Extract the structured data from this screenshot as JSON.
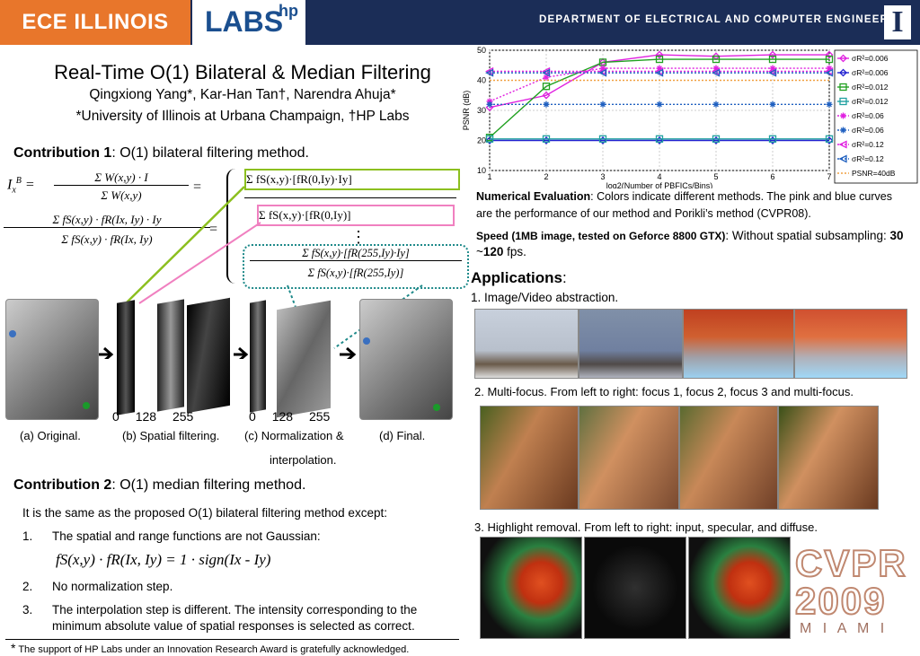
{
  "header": {
    "ece": "ECE ILLINOIS",
    "labs": "LABS",
    "hp": "hp",
    "dept": "DEPARTMENT OF ELECTRICAL AND COMPUTER ENGINEERING",
    "logo": "I"
  },
  "title": "Real-Time O(1) Bilateral & Median Filtering",
  "authors": "Qingxiong Yang*, Kar-Han Tan†, Narendra Ahuja*",
  "affiliation": "*University of Illinois at Urbana Champaign, †HP Labs",
  "contrib1": {
    "bold": "Contribution 1",
    "rest": ": O(1) bilateral filtering method."
  },
  "formula": {
    "lhs": "I",
    "num1": "Σ W(x,y) · I",
    "den1": "Σ W(x,y)",
    "num2": "Σ fS(x,y) · fR(Ix, Iy) · Iy",
    "den2": "Σ fS(x,y) · fR(Ix, Iy)",
    "box_green": "Σ fS(x,y)·[fR(0,Iy)·Iy]",
    "box_pink": "Σ fS(x,y)·[fR(0,Iy)]",
    "box_teal_num": "Σ fS(x,y)·[fR(255,Iy)·Iy]",
    "box_teal_den": "Σ fS(x,y)·[fR(255,Iy)]",
    "dots": "⋮"
  },
  "pipeline": {
    "ticks1": [
      "0",
      "128",
      "255"
    ],
    "ticks2": [
      "0",
      "128",
      "255"
    ],
    "captions": [
      "(a) Original.",
      "(b) Spatial filtering.",
      "(c) Normalization &",
      "(d) Final."
    ],
    "caption_cont": "interpolation."
  },
  "contrib2": {
    "bold": "Contribution 2",
    "rest": ": O(1) median filtering method."
  },
  "c2_intro": "It is the same as the proposed O(1) bilateral filtering method except:",
  "c2_items": [
    {
      "num": "1.",
      "text": "The spatial and range functions are not Gaussian:"
    },
    {
      "num": "2.",
      "text": "No normalization step."
    },
    {
      "num": "3.",
      "text": "The interpolation step is different. The intensity corresponding to the"
    }
  ],
  "c2_item3_cont": "minimum absolute value of spatial responses is selected as correct.",
  "median_formula": "fS(x,y) · fR(Ix, Iy)  = 1 · sign(Ix - Iy)",
  "footnote": {
    "star": "*",
    "text": "The support of HP Labs under an Innovation Research Award is gratefully acknowledged."
  },
  "numerical": {
    "bold": "Numerical Evaluation",
    "text": ":  Colors indicate different methods. The pink and blue curves are the performance of our method and Porikli’s method (CVPR08).",
    "speed_bold": "Speed (1MB image, tested on Geforce 8800 GTX)",
    "speed_rest": ": Without spatial subsampling: ",
    "speed_a": "30",
    "speed_mid": " ~",
    "speed_b": "120",
    "speed_end": " fps."
  },
  "applications": {
    "title": "Applications",
    "colon": ":",
    "items": [
      "1. Image/Video abstraction.",
      "2. Multi-focus. From left to right: focus 1, focus 2, focus 3 and multi-focus.",
      "3. Highlight removal. From left to right: input, specular, and diffuse."
    ]
  },
  "cvpr": {
    "line1": "CVPR",
    "line2": "2009",
    "line3": "M I A M I"
  },
  "chart_data": {
    "type": "line",
    "xlabel": "log2(Number of PBFICs/Bins)",
    "ylabel": "PSNR (dB)",
    "x": [
      1,
      2,
      3,
      4,
      5,
      6,
      7
    ],
    "xlim": [
      1,
      7
    ],
    "ylim": [
      10,
      50
    ],
    "xticks": [
      "1",
      "2",
      "3",
      "4",
      "5",
      "6",
      "7"
    ],
    "yticks": [
      "10",
      "20",
      "30",
      "40",
      "50"
    ],
    "grid": true,
    "legend_position": "right",
    "series": [
      {
        "name": "σR²=0.006",
        "color": "#e020e0",
        "style": "solid",
        "marker": "diamond",
        "values": [
          31,
          35,
          46,
          48.5,
          48,
          48.5,
          48.5
        ]
      },
      {
        "name": "σR²=0.006",
        "color": "#2020d0",
        "style": "solid",
        "marker": "diamond",
        "values": [
          20,
          20,
          20,
          20,
          20,
          20,
          20
        ]
      },
      {
        "name": "σR²=0.012",
        "color": "#20a020",
        "style": "solid",
        "marker": "square",
        "values": [
          21,
          38,
          46,
          47,
          47,
          47,
          47
        ]
      },
      {
        "name": "σR²=0.012",
        "color": "#20a0a0",
        "style": "solid",
        "marker": "square",
        "values": [
          20.5,
          20.5,
          20.5,
          20.5,
          20.5,
          20.5,
          20.5
        ]
      },
      {
        "name": "σR²=0.06",
        "color": "#e020e0",
        "style": "dotted",
        "marker": "star",
        "values": [
          33,
          41,
          44,
          44,
          44,
          44,
          44
        ]
      },
      {
        "name": "σR²=0.06",
        "color": "#2060c0",
        "style": "dotted",
        "marker": "star",
        "values": [
          32,
          32,
          32,
          32,
          32,
          32,
          32
        ]
      },
      {
        "name": "σR²=0.12",
        "color": "#e020e0",
        "style": "dotted",
        "marker": "triangle",
        "values": [
          43,
          43,
          43,
          43,
          43,
          43,
          43
        ]
      },
      {
        "name": "σR²=0.12",
        "color": "#2060c0",
        "style": "dotted",
        "marker": "triangle",
        "values": [
          42.5,
          42.5,
          42.5,
          42.5,
          42.5,
          42.5,
          42.5
        ]
      },
      {
        "name": "PSNR=40dB",
        "color": "#f0a040",
        "style": "dotted",
        "marker": "none",
        "values": [
          40,
          40,
          40,
          40,
          40,
          40,
          40
        ]
      }
    ]
  }
}
